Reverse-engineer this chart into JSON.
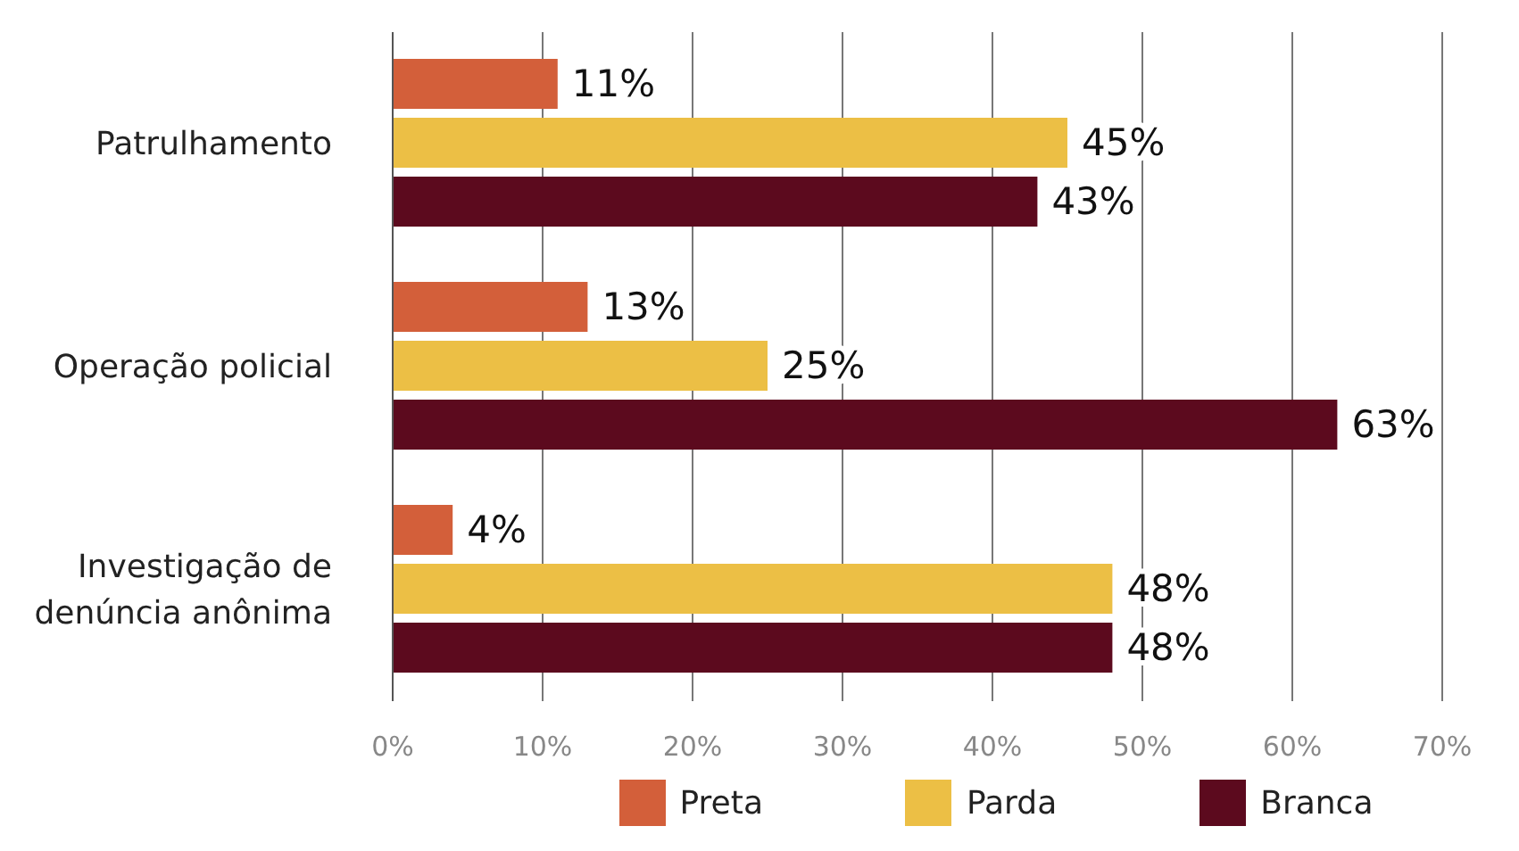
{
  "chart_data": {
    "type": "bar",
    "orientation": "horizontal",
    "categories": [
      "Patrulhamento",
      "Operação policial",
      "Investigação de denúncia anônima"
    ],
    "series": [
      {
        "name": "Preta",
        "color": "#d35f3a",
        "values": [
          11,
          13,
          4
        ],
        "value_labels": [
          "11%",
          "13%",
          "4%"
        ]
      },
      {
        "name": "Parda",
        "color": "#ecbf45",
        "values": [
          45,
          25,
          48
        ],
        "value_labels": [
          "45%",
          "25%",
          "48%"
        ]
      },
      {
        "name": "Branca",
        "color": "#5c0a1e",
        "values": [
          43,
          63,
          48
        ],
        "value_labels": [
          "43%",
          "63%",
          "48%"
        ]
      }
    ],
    "xlim": [
      0,
      70
    ],
    "xticks": [
      {
        "value": 0,
        "label": "0%"
      },
      {
        "value": 10,
        "label": "10%"
      },
      {
        "value": 20,
        "label": "20%"
      },
      {
        "value": 30,
        "label": "30%"
      },
      {
        "value": 40,
        "label": "40%"
      },
      {
        "value": 50,
        "label": "50%"
      },
      {
        "value": 60,
        "label": "60%"
      },
      {
        "value": 70,
        "label": "70%"
      }
    ],
    "grid": "x",
    "legend": "bottom"
  }
}
